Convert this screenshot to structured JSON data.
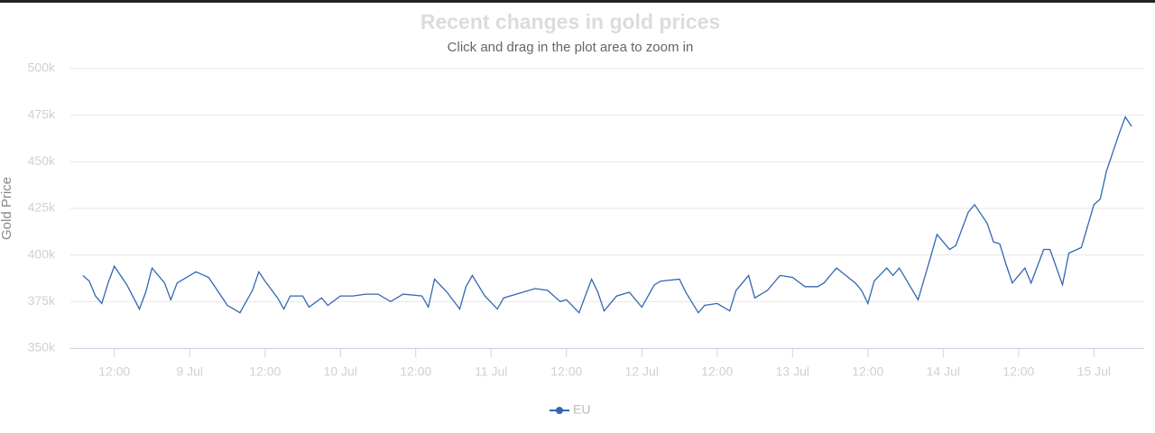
{
  "chart_data": {
    "type": "line",
    "title": "Recent changes in gold prices",
    "subtitle": "Click and drag in the plot area to zoom in",
    "y_label": "Gold Price",
    "x": [
      7,
      8,
      9,
      10,
      11,
      12,
      14,
      16,
      17,
      18,
      20,
      21,
      22,
      25,
      27,
      28,
      30,
      32,
      34,
      35,
      36,
      38,
      39,
      40,
      42,
      43,
      45,
      46,
      48,
      50,
      52,
      54,
      56,
      58,
      61,
      62,
      63,
      65,
      67,
      68,
      69,
      71,
      73,
      74,
      76,
      79,
      81,
      83,
      84,
      86,
      88,
      89,
      90,
      92,
      94,
      96,
      98,
      99,
      102,
      103,
      105,
      106,
      108,
      110,
      111,
      113,
      114,
      116,
      118,
      120,
      122,
      124,
      125,
      127,
      130,
      131,
      132,
      133,
      135,
      136,
      137,
      140,
      142,
      143,
      145,
      146,
      148,
      149,
      151,
      152,
      153,
      154,
      155,
      157,
      158,
      160,
      161,
      163,
      164,
      166,
      168,
      169,
      170,
      172,
      173,
      174
    ],
    "series": [
      {
        "name": "EU",
        "color": "#3267b3",
        "values": [
          389000,
          386000,
          378000,
          374000,
          385000,
          394000,
          384000,
          371000,
          380000,
          393000,
          385000,
          376000,
          385000,
          391000,
          388000,
          383000,
          373000,
          369000,
          381000,
          391000,
          386000,
          377000,
          371000,
          378000,
          378000,
          372000,
          377000,
          373000,
          378000,
          378000,
          379000,
          379000,
          375000,
          379000,
          378000,
          372000,
          387000,
          380000,
          371000,
          383000,
          389000,
          378000,
          371000,
          377000,
          379000,
          382000,
          381000,
          375000,
          376000,
          369000,
          387000,
          380000,
          370000,
          378000,
          380000,
          372000,
          384000,
          386000,
          387000,
          380000,
          369000,
          373000,
          374000,
          370000,
          381000,
          389000,
          377000,
          381000,
          389000,
          388000,
          383000,
          383000,
          385000,
          393000,
          385000,
          381000,
          374000,
          386000,
          393000,
          389000,
          393000,
          376000,
          399000,
          411000,
          403000,
          405000,
          423000,
          427000,
          417000,
          407000,
          406000,
          395000,
          385000,
          393000,
          385000,
          403000,
          403000,
          384000,
          401000,
          404000,
          427000,
          430000,
          445000,
          465000,
          474000,
          469000
        ]
      }
    ],
    "xlim": [
      5,
      176
    ],
    "xticks": [
      {
        "value": 12,
        "label": "12:00"
      },
      {
        "value": 24,
        "label": "9 Jul"
      },
      {
        "value": 36,
        "label": "12:00"
      },
      {
        "value": 48,
        "label": "10 Jul"
      },
      {
        "value": 60,
        "label": "12:00"
      },
      {
        "value": 72,
        "label": "11 Jul"
      },
      {
        "value": 84,
        "label": "12:00"
      },
      {
        "value": 96,
        "label": "12 Jul"
      },
      {
        "value": 108,
        "label": "12:00"
      },
      {
        "value": 120,
        "label": "13 Jul"
      },
      {
        "value": 132,
        "label": "12:00"
      },
      {
        "value": 144,
        "label": "14 Jul"
      },
      {
        "value": 156,
        "label": "12:00"
      },
      {
        "value": 168,
        "label": "15 Jul"
      }
    ],
    "ylim": [
      350000,
      500000
    ],
    "yticks": [
      {
        "value": 350000,
        "label": "350k"
      },
      {
        "value": 375000,
        "label": "375k"
      },
      {
        "value": 400000,
        "label": "400k"
      },
      {
        "value": 425000,
        "label": "425k"
      },
      {
        "value": 450000,
        "label": "450k"
      },
      {
        "value": 475000,
        "label": "475k"
      },
      {
        "value": 500000,
        "label": "500k"
      }
    ],
    "grid": true
  }
}
